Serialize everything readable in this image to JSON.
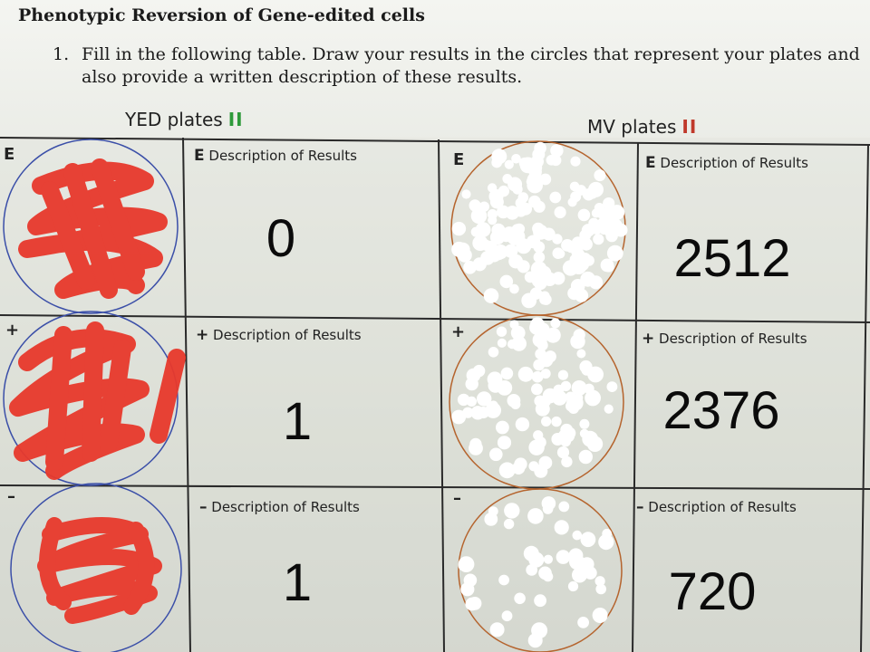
{
  "title": "Phenotypic Reversion of Gene-edited cells",
  "instruction": {
    "number": "1.",
    "text": "Fill in the following table. Draw your results in the circles that represent your plates and also provide a written description of these results."
  },
  "headers": {
    "yed": {
      "label": "YED plates",
      "bars": "II",
      "bars_color": "#2e9a3a"
    },
    "mv": {
      "label": "MV plates",
      "bars": "II",
      "bars_color": "#c0392b"
    }
  },
  "rows": [
    {
      "mark": "E",
      "yed_label_mark": "E",
      "yed_label": "Description of Results",
      "yed_value": "0",
      "mv_mark": "E",
      "mv_label_mark": "E",
      "mv_label": "Description of Results",
      "mv_value": "2512"
    },
    {
      "mark": "+",
      "yed_label_mark": "+",
      "yed_label": "Description of Results",
      "yed_value": "1",
      "mv_mark": "+",
      "mv_label_mark": "+",
      "mv_label": "Description of Results",
      "mv_value": "2376"
    },
    {
      "mark": "–",
      "yed_label_mark": "–",
      "yed_label": "Description of Results",
      "yed_value": "1",
      "mv_mark": "–",
      "mv_label_mark": "–",
      "mv_label": "Description of Results",
      "mv_value": "720"
    }
  ],
  "colors": {
    "red_scribble": "#e8392c",
    "yed_circle": "#3b4fa8",
    "mv_circle": "#b5642e",
    "colony": "#ffffff"
  }
}
